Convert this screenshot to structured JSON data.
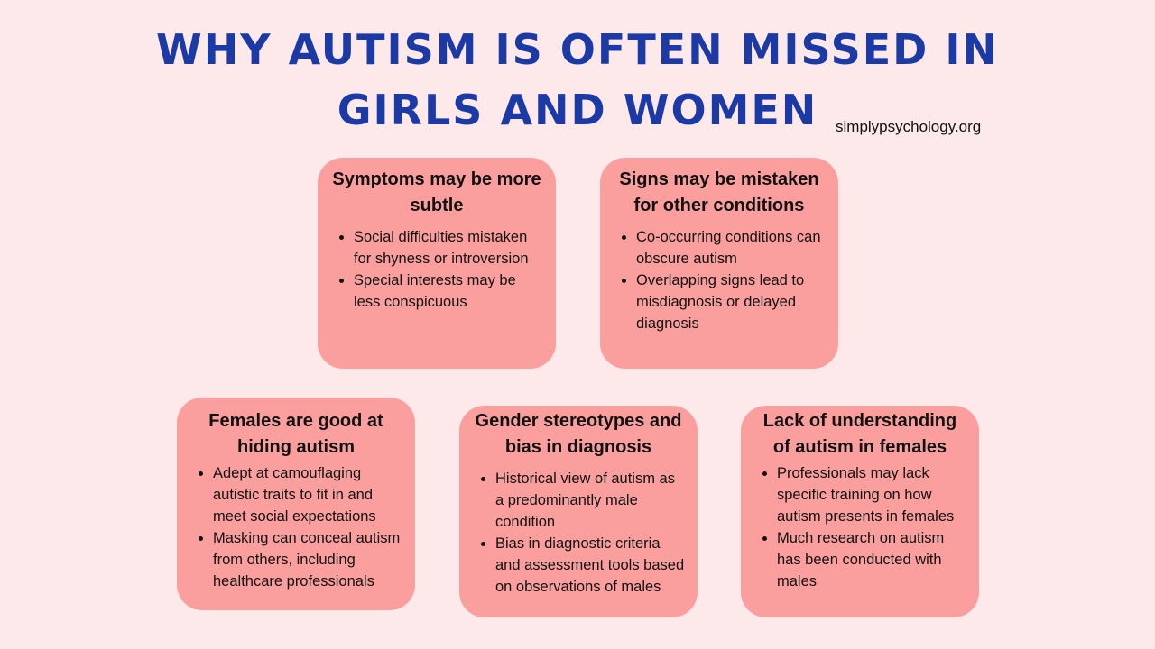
{
  "title": {
    "line1": "Why Autism Is Often Missed In",
    "line2": "Girls and Women"
  },
  "source": "simplypsychology.org",
  "colors": {
    "background": "#fde9ea",
    "box": "#fb9f9e",
    "title": "#1b3aa6"
  },
  "boxes": [
    {
      "heading": "Symptoms may be more subtle",
      "points": [
        "Social difficulties mistaken for shyness or introversion",
        "Special interests may be less conspicuous"
      ]
    },
    {
      "heading": "Signs may be mistaken for other conditions",
      "points": [
        "Co-occurring conditions can obscure autism",
        "Overlapping signs lead to misdiagnosis or delayed diagnosis"
      ]
    },
    {
      "heading": "Females are good at hiding autism",
      "points": [
        "Adept at camouflaging autistic traits to fit in and meet social expectations",
        "Masking can conceal autism from others, including healthcare professionals"
      ]
    },
    {
      "heading": "Gender stereotypes and bias in diagnosis",
      "points": [
        "Historical view of autism as a predominantly male condition",
        "Bias in diagnostic criteria and assessment tools based on observations of males"
      ]
    },
    {
      "heading": "Lack of understanding of autism in females",
      "points": [
        "Professionals may lack specific training on how autism presents in females",
        "Much research on autism has been conducted with males"
      ]
    }
  ]
}
